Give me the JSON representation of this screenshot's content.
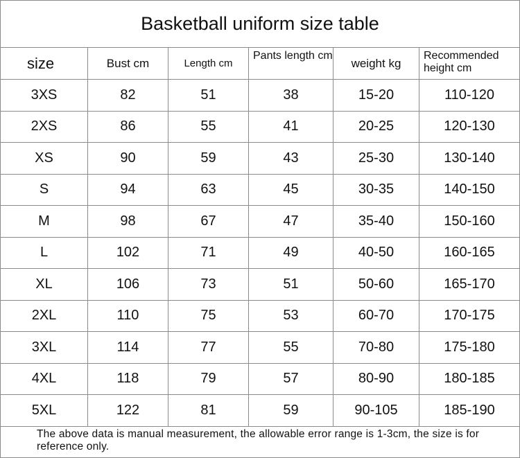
{
  "header": {
    "title": "Basketball uniform size table"
  },
  "table": {
    "columns": [
      "size",
      "Bust cm",
      "Length cm",
      "Pants length cm",
      "weight kg",
      "Recommended height cm"
    ],
    "rows": [
      [
        "3XS",
        82,
        51,
        38,
        "15-20",
        "110-120"
      ],
      [
        "2XS",
        86,
        55,
        41,
        "20-25",
        "120-130"
      ],
      [
        "XS",
        90,
        59,
        43,
        "25-30",
        "130-140"
      ],
      [
        "S",
        94,
        63,
        45,
        "30-35",
        "140-150"
      ],
      [
        "M",
        98,
        67,
        47,
        "35-40",
        "150-160"
      ],
      [
        "L",
        102,
        71,
        49,
        "40-50",
        "160-165"
      ],
      [
        "XL",
        106,
        73,
        51,
        "50-60",
        "165-170"
      ],
      [
        "2XL",
        110,
        75,
        53,
        "60-70",
        "170-175"
      ],
      [
        "3XL",
        114,
        77,
        55,
        "70-80",
        "175-180"
      ],
      [
        "4XL",
        118,
        79,
        57,
        "80-90",
        "180-185"
      ],
      [
        "5XL",
        122,
        81,
        59,
        "90-105",
        "185-190"
      ]
    ]
  },
  "footer": {
    "note": "The above data is manual measurement, the allowable error range is 1-3cm, the size is for reference only."
  }
}
